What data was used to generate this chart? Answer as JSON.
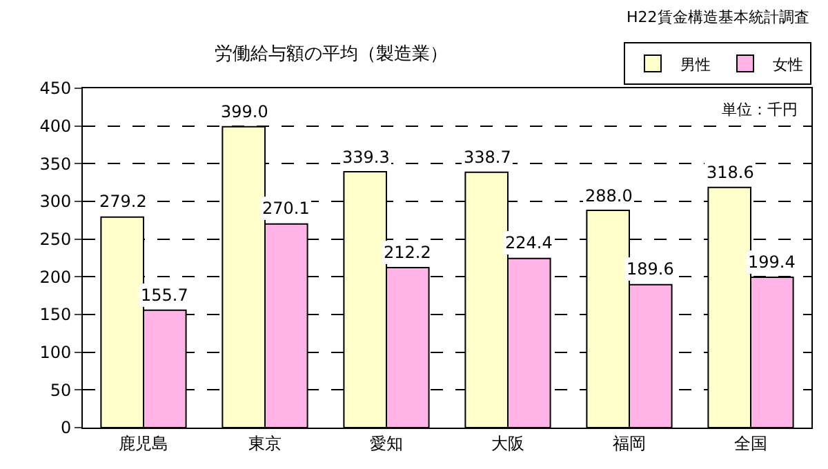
{
  "chart_data": {
    "type": "bar",
    "title": "労働給与額の平均（製造業）",
    "categories": [
      "鹿児島",
      "東京",
      "愛知",
      "大阪",
      "福岡",
      "全国"
    ],
    "series": [
      {
        "name": "男性",
        "color": "#ffffcc",
        "values": [
          279.2,
          399.0,
          339.3,
          338.7,
          288.0,
          318.6
        ]
      },
      {
        "name": "女性",
        "color": "#ffb3e6",
        "values": [
          155.7,
          270.1,
          212.2,
          224.4,
          189.6,
          199.4
        ]
      }
    ],
    "value_labels": [
      [
        "279.2",
        "399.0",
        "339.3",
        "338.7",
        "288.0",
        "318.6"
      ],
      [
        "155.7",
        "270.1",
        "212.2",
        "224.4",
        "189.6",
        "199.4"
      ]
    ],
    "ylim": [
      0,
      450
    ],
    "yticks": [
      0,
      50,
      100,
      150,
      200,
      250,
      300,
      350,
      400,
      450
    ],
    "grid": "y",
    "legend": "top right",
    "annotations": [
      "H22賃金構造基本統計調査",
      "単位：千円"
    ]
  }
}
